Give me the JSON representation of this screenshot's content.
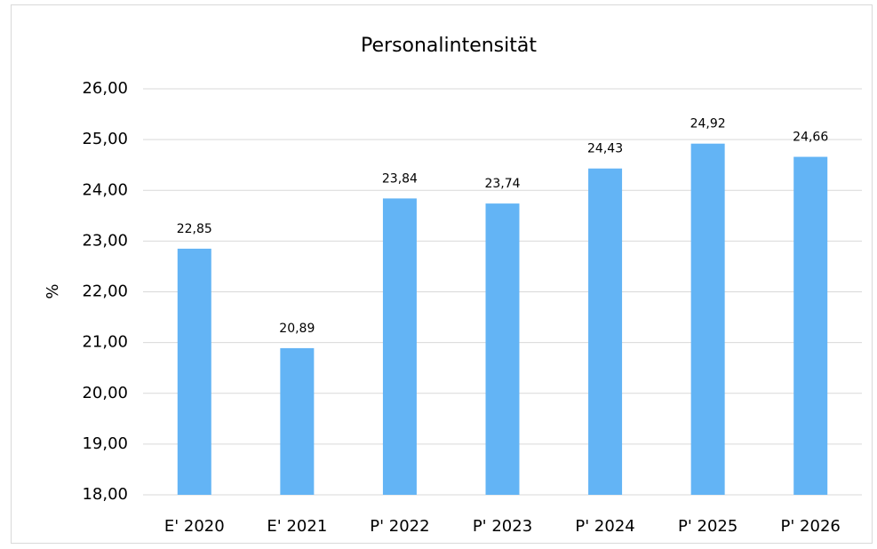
{
  "chart_data": {
    "type": "bar",
    "title": "Personalintensität",
    "y_label": "%",
    "categories": [
      "E' 2020",
      "E' 2021",
      "P' 2022",
      "P' 2023",
      "P' 2024",
      "P' 2025",
      "P' 2026"
    ],
    "values": [
      22.85,
      20.89,
      23.84,
      23.74,
      24.43,
      24.92,
      24.66
    ],
    "value_labels": [
      "22,85",
      "20,89",
      "23,84",
      "23,74",
      "24,43",
      "24,92",
      "24,66"
    ],
    "color": "#63b4f5",
    "ylim": [
      18,
      26
    ],
    "yticks": [
      {
        "value": 18,
        "label": "18,00"
      },
      {
        "value": 19,
        "label": "19,00"
      },
      {
        "value": 20,
        "label": "20,00"
      },
      {
        "value": 21,
        "label": "21,00"
      },
      {
        "value": 22,
        "label": "22,00"
      },
      {
        "value": 23,
        "label": "23,00"
      },
      {
        "value": 24,
        "label": "24,00"
      },
      {
        "value": 25,
        "label": "25,00"
      },
      {
        "value": 26,
        "label": "26,00"
      }
    ],
    "grid": true
  }
}
